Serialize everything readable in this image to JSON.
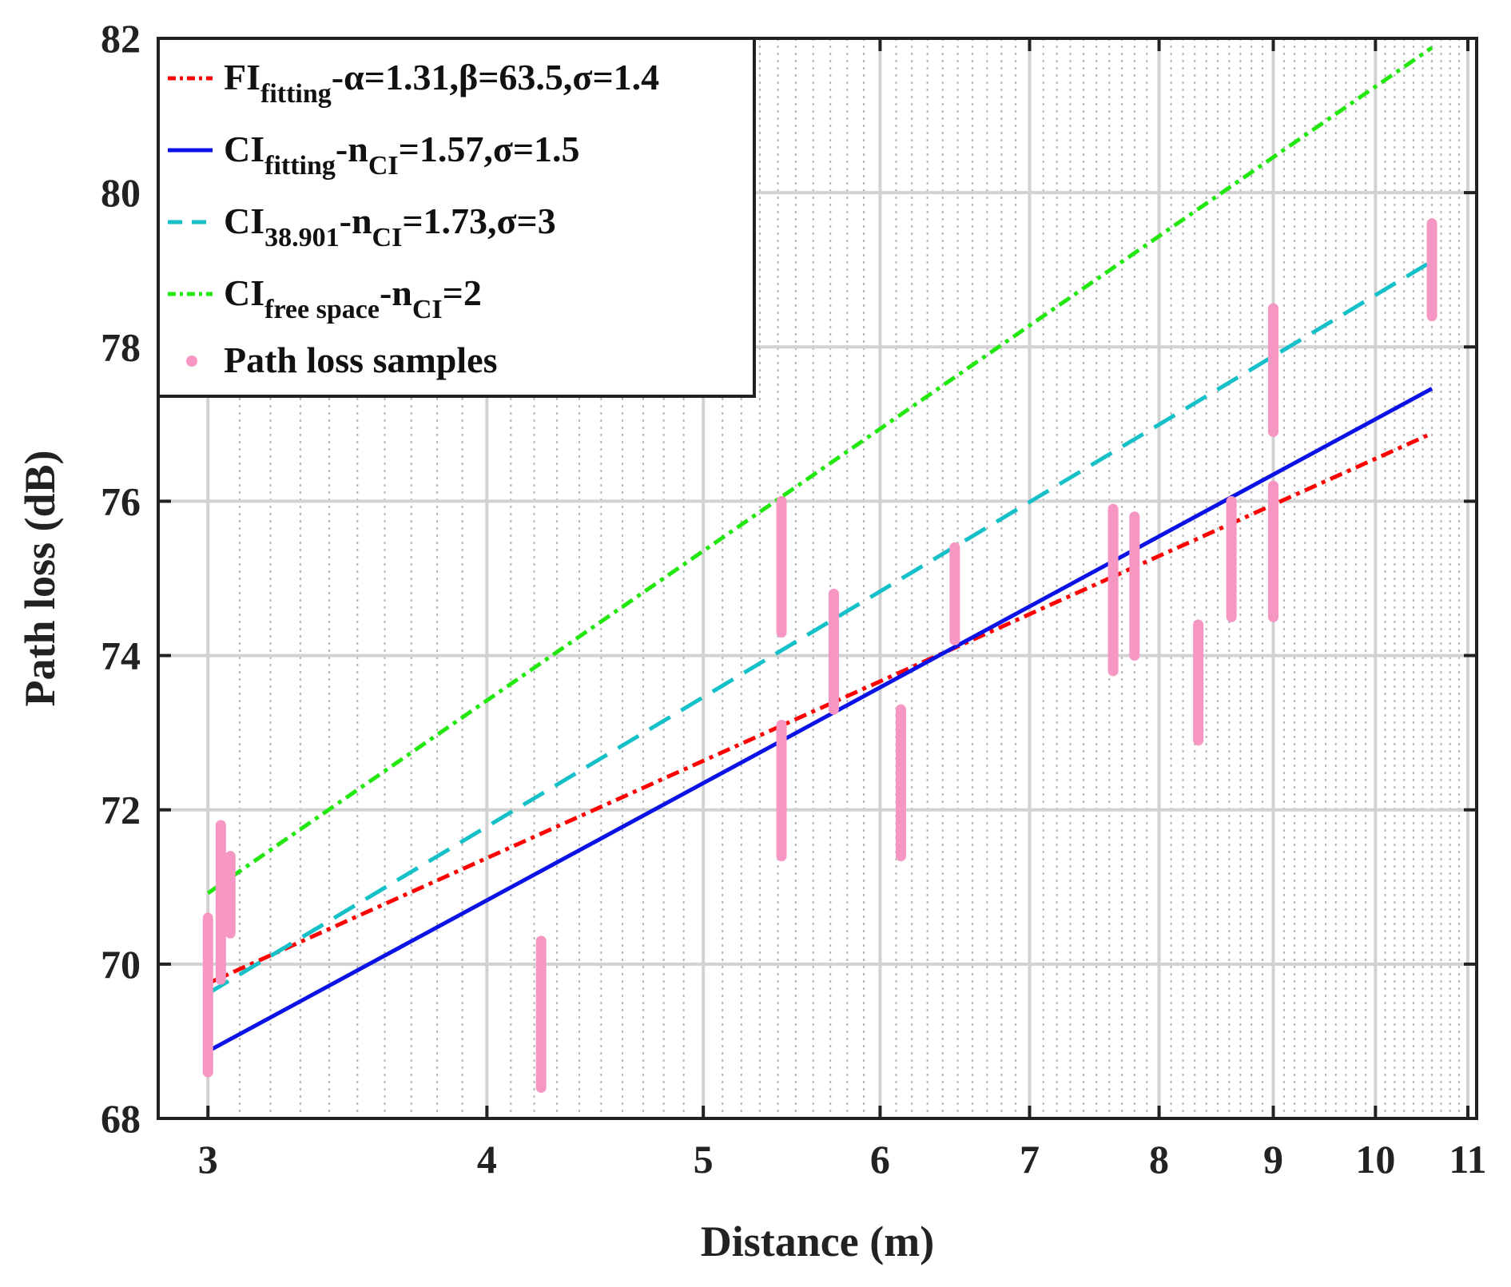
{
  "chart_data": {
    "type": "line",
    "xscale": "log",
    "xlabel": "Distance (m)",
    "ylabel": "Path loss (dB)",
    "xlim": [
      2.85,
      11.1
    ],
    "ylim": [
      68,
      82
    ],
    "xticks": [
      3,
      4,
      5,
      6,
      7,
      8,
      9,
      10,
      11
    ],
    "yticks": [
      68,
      70,
      72,
      74,
      76,
      78,
      80,
      82
    ],
    "grid": true,
    "legend_position": "top-left",
    "series": [
      {
        "name": "FI_fitting",
        "legend": {
          "main": "FI",
          "sub": "fitting",
          "rest": "-α=1.31,β=63.5,σ=1.4"
        },
        "color": "#ff0000",
        "style": "dashdot",
        "x": [
          3,
          10.6
        ],
        "y": [
          69.75,
          76.88
        ]
      },
      {
        "name": "CI_fitting",
        "legend": {
          "main": "CI",
          "sub": "fitting",
          "rest": "-n",
          "sub2": "CI",
          "rest2": "=1.57,σ=1.5"
        },
        "color": "#0a12e6",
        "style": "solid",
        "x": [
          3,
          10.6
        ],
        "y": [
          68.87,
          77.46
        ]
      },
      {
        "name": "CI_38.901",
        "legend": {
          "main": "CI",
          "sub": "38.901",
          "rest": "-n",
          "sub2": "CI",
          "rest2": "=1.73,σ=3"
        },
        "color": "#16c0c8",
        "style": "dashed",
        "x": [
          3,
          10.6
        ],
        "y": [
          69.62,
          79.11
        ]
      },
      {
        "name": "CI_free space",
        "legend": {
          "main": "CI",
          "sub": "free space",
          "rest": "-n",
          "sub2": "CI",
          "rest2": "=2"
        },
        "color": "#22e810",
        "style": "dashdot",
        "x": [
          3,
          10.6
        ],
        "y": [
          70.92,
          81.88
        ]
      }
    ],
    "samples": {
      "name": "Path loss samples",
      "legend": "Path loss samples",
      "color": "#f596c3",
      "ranges": [
        {
          "x": 3.0,
          "ymin": 68.6,
          "ymax": 70.6
        },
        {
          "x": 3.04,
          "ymin": 69.8,
          "ymax": 71.8
        },
        {
          "x": 3.07,
          "ymin": 70.4,
          "ymax": 71.4
        },
        {
          "x": 4.23,
          "ymin": 68.4,
          "ymax": 70.3
        },
        {
          "x": 5.42,
          "ymin": 74.3,
          "ymax": 76.0
        },
        {
          "x": 5.42,
          "ymin": 71.4,
          "ymax": 73.1
        },
        {
          "x": 5.72,
          "ymin": 73.3,
          "ymax": 74.8
        },
        {
          "x": 6.13,
          "ymin": 71.4,
          "ymax": 73.3
        },
        {
          "x": 6.48,
          "ymin": 74.2,
          "ymax": 75.4
        },
        {
          "x": 7.63,
          "ymin": 73.8,
          "ymax": 75.9
        },
        {
          "x": 7.8,
          "ymin": 74.0,
          "ymax": 75.8
        },
        {
          "x": 8.33,
          "ymin": 72.9,
          "ymax": 74.4
        },
        {
          "x": 8.62,
          "ymin": 74.5,
          "ymax": 76.0
        },
        {
          "x": 9.0,
          "ymin": 76.9,
          "ymax": 78.5
        },
        {
          "x": 9.0,
          "ymin": 74.5,
          "ymax": 76.2
        },
        {
          "x": 10.6,
          "ymin": 78.4,
          "ymax": 79.6
        }
      ]
    }
  }
}
